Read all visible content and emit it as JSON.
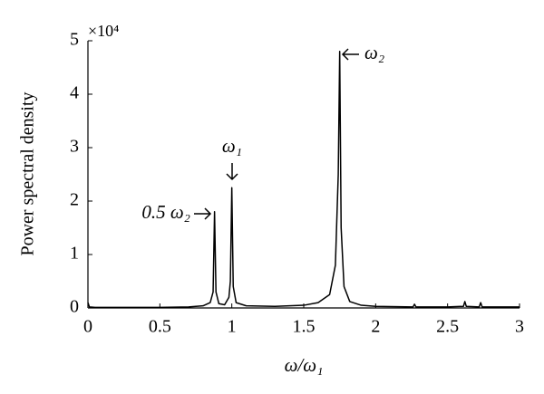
{
  "chart_data": {
    "type": "line",
    "xlabel": "ω/ω₁",
    "ylabel": "Power spectral density",
    "y_multiplier": "×10⁴",
    "x": [
      0,
      0.01,
      0.05,
      0.2,
      0.5,
      0.7,
      0.8,
      0.85,
      0.87,
      0.88,
      0.89,
      0.91,
      0.95,
      0.98,
      0.99,
      1.0,
      1.01,
      1.03,
      1.1,
      1.3,
      1.5,
      1.6,
      1.68,
      1.72,
      1.74,
      1.75,
      1.76,
      1.78,
      1.82,
      1.9,
      2.0,
      2.26,
      2.27,
      2.28,
      2.5,
      2.61,
      2.62,
      2.63,
      2.72,
      2.73,
      2.74,
      3.0
    ],
    "y": [
      0.1,
      0.02,
      0.01,
      0.01,
      0.01,
      0.02,
      0.04,
      0.1,
      0.3,
      1.8,
      0.3,
      0.08,
      0.06,
      0.2,
      0.5,
      2.25,
      0.4,
      0.1,
      0.04,
      0.03,
      0.05,
      0.1,
      0.25,
      0.8,
      2.5,
      4.8,
      1.5,
      0.4,
      0.12,
      0.05,
      0.03,
      0.02,
      0.07,
      0.02,
      0.02,
      0.03,
      0.12,
      0.03,
      0.02,
      0.1,
      0.02,
      0.02
    ],
    "color": "#000000",
    "xlim": [
      0,
      3
    ],
    "ylim": [
      0,
      5
    ],
    "xticks": [
      0,
      0.5,
      1,
      1.5,
      2,
      2.5,
      3
    ],
    "yticks": [
      0,
      1,
      2,
      3,
      4,
      5
    ],
    "annotations": [
      "ω₂",
      "ω₁",
      "0.5 ω₂"
    ]
  }
}
